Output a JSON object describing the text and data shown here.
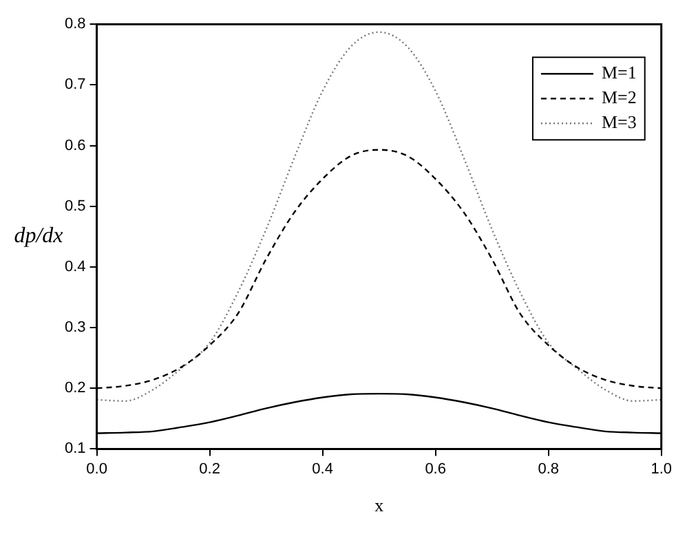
{
  "chart_data": {
    "type": "line",
    "xlabel": "x",
    "ylabel": "dp/dx",
    "x": [
      0,
      0.05,
      0.1,
      0.15,
      0.2,
      0.25,
      0.3,
      0.35,
      0.4,
      0.45,
      0.5,
      0.55,
      0.6,
      0.65,
      0.7,
      0.75,
      0.8,
      0.85,
      0.9,
      0.95,
      1.0
    ],
    "series": [
      {
        "name": "M=1",
        "color": "#000000",
        "line_style": "solid",
        "values": [
          0.126,
          0.127,
          0.129,
          0.136,
          0.144,
          0.155,
          0.167,
          0.177,
          0.185,
          0.19,
          0.191,
          0.19,
          0.185,
          0.177,
          0.167,
          0.155,
          0.144,
          0.136,
          0.129,
          0.127,
          0.126
        ]
      },
      {
        "name": "M=2",
        "color": "#000000",
        "line_style": "dashed",
        "values": [
          0.2,
          0.204,
          0.214,
          0.235,
          0.271,
          0.323,
          0.413,
          0.49,
          0.545,
          0.583,
          0.593,
          0.583,
          0.545,
          0.49,
          0.413,
          0.323,
          0.271,
          0.235,
          0.214,
          0.204,
          0.2
        ]
      },
      {
        "name": "M=3",
        "color": "#777777",
        "line_style": "dotted",
        "values": [
          0.181,
          0.179,
          0.198,
          0.233,
          0.275,
          0.358,
          0.462,
          0.58,
          0.69,
          0.763,
          0.787,
          0.763,
          0.69,
          0.58,
          0.462,
          0.358,
          0.275,
          0.233,
          0.198,
          0.179,
          0.181
        ]
      }
    ],
    "xlim": [
      0,
      1
    ],
    "xticks": [
      {
        "value": 0,
        "label": "0.0"
      },
      0.2,
      0.4,
      0.6,
      0.8,
      {
        "value": 1,
        "label": "1.0"
      }
    ],
    "ylim": [
      0.1,
      0.8
    ],
    "yticks": [
      0.1,
      0.2,
      0.3,
      0.4,
      0.5,
      0.6,
      0.7,
      0.8
    ],
    "grid": false,
    "legend": "top right",
    "marker": "none"
  }
}
